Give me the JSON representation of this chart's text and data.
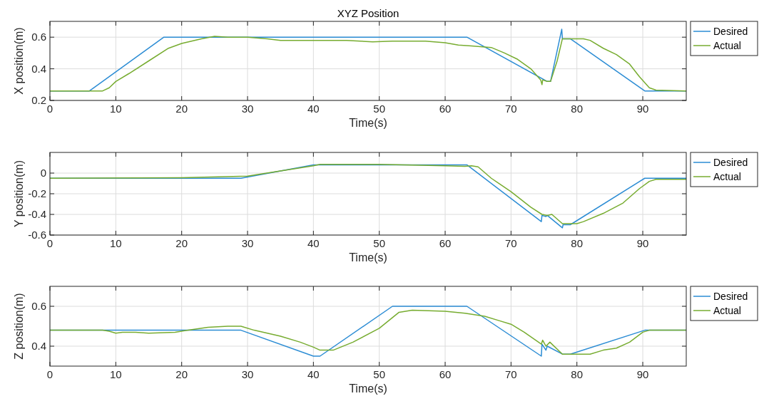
{
  "chart_data": [
    {
      "type": "line",
      "title": "XYZ Position",
      "xlabel": "Time(s)",
      "ylabel": "X position(m)",
      "xlim": [
        0,
        96.6
      ],
      "xticks": [
        0,
        10,
        20,
        30,
        40,
        50,
        60,
        70,
        80,
        90
      ],
      "ylim": [
        0.2,
        0.7
      ],
      "yticks": [
        0.2,
        0.4,
        0.6
      ],
      "grid": true,
      "legend": "right",
      "series": [
        {
          "name": "Desired",
          "color": "#2b8cd4",
          "x": [
            0,
            6,
            17.3,
            63.3,
            75.5,
            76,
            77.7,
            77.8,
            79,
            90.3,
            96.6
          ],
          "values": [
            0.26,
            0.26,
            0.6,
            0.6,
            0.32,
            0.32,
            0.65,
            0.59,
            0.59,
            0.26,
            0.26
          ]
        },
        {
          "name": "Actual",
          "color": "#77ac30",
          "x": [
            0,
            8,
            9,
            10,
            12,
            15,
            18,
            20,
            23,
            25,
            27,
            30,
            33,
            35,
            40,
            45,
            49,
            52,
            57,
            60,
            62,
            64,
            67,
            69,
            71,
            73,
            74.5,
            74.7,
            74.8,
            75.5,
            76,
            77,
            77.8,
            80,
            81,
            82,
            84,
            86,
            88,
            89.5,
            91,
            92,
            96.6
          ],
          "values": [
            0.26,
            0.26,
            0.28,
            0.32,
            0.37,
            0.45,
            0.53,
            0.56,
            0.59,
            0.605,
            0.6,
            0.6,
            0.59,
            0.58,
            0.58,
            0.58,
            0.57,
            0.575,
            0.575,
            0.565,
            0.55,
            0.545,
            0.535,
            0.5,
            0.46,
            0.4,
            0.33,
            0.3,
            0.33,
            0.32,
            0.32,
            0.45,
            0.59,
            0.59,
            0.59,
            0.58,
            0.53,
            0.49,
            0.43,
            0.35,
            0.28,
            0.265,
            0.26
          ]
        }
      ]
    },
    {
      "type": "line",
      "xlabel": "Time(s)",
      "ylabel": "Y position(m)",
      "xlim": [
        0,
        96.6
      ],
      "xticks": [
        0,
        10,
        20,
        30,
        40,
        50,
        60,
        70,
        80,
        90
      ],
      "ylim": [
        -0.6,
        0.2
      ],
      "yticks": [
        -0.6,
        -0.4,
        -0.2,
        0
      ],
      "grid": true,
      "legend": "right",
      "series": [
        {
          "name": "Desired",
          "color": "#2b8cd4",
          "x": [
            0,
            29,
            40,
            63.3,
            74.6,
            74.7,
            75.3,
            75.5,
            77.8,
            77.9,
            79,
            90.3,
            96.6
          ],
          "values": [
            -0.05,
            -0.05,
            0.08,
            0.08,
            -0.47,
            -0.41,
            -0.42,
            -0.41,
            -0.53,
            -0.5,
            -0.5,
            -0.05,
            -0.05
          ]
        },
        {
          "name": "Actual",
          "color": "#77ac30",
          "x": [
            0,
            20,
            30,
            35,
            40,
            41,
            50,
            60,
            63,
            64,
            65,
            67,
            70,
            73,
            74.7,
            75.5,
            76.2,
            77.8,
            79,
            80,
            81,
            84,
            87,
            89.5,
            91,
            92,
            96.6
          ],
          "values": [
            -0.05,
            -0.045,
            -0.03,
            0.02,
            0.07,
            0.085,
            0.085,
            0.07,
            0.065,
            0.07,
            0.06,
            -0.05,
            -0.18,
            -0.33,
            -0.4,
            -0.41,
            -0.4,
            -0.49,
            -0.49,
            -0.49,
            -0.47,
            -0.39,
            -0.29,
            -0.15,
            -0.08,
            -0.06,
            -0.06
          ]
        }
      ]
    },
    {
      "type": "line",
      "xlabel": "Time(s)",
      "ylabel": "Z position(m)",
      "xlim": [
        0,
        96.6
      ],
      "xticks": [
        0,
        10,
        20,
        30,
        40,
        50,
        60,
        70,
        80,
        90
      ],
      "ylim": [
        0.3,
        0.7
      ],
      "yticks": [
        0.4,
        0.6
      ],
      "grid": true,
      "legend": "right",
      "series": [
        {
          "name": "Desired",
          "color": "#2b8cd4",
          "x": [
            0,
            29,
            40,
            41,
            52,
            63.3,
            74.6,
            74.7,
            75.3,
            75.5,
            77.8,
            79,
            90.3,
            96.6
          ],
          "values": [
            0.48,
            0.48,
            0.35,
            0.35,
            0.6,
            0.6,
            0.35,
            0.41,
            0.38,
            0.4,
            0.36,
            0.36,
            0.48,
            0.48
          ]
        },
        {
          "name": "Actual",
          "color": "#77ac30",
          "x": [
            0,
            8,
            9,
            10,
            11,
            13,
            15,
            19,
            21,
            24,
            27,
            29,
            31,
            35,
            38,
            40,
            41,
            43,
            46,
            50,
            53,
            55,
            60,
            63,
            66,
            68,
            70,
            72,
            74.6,
            74.8,
            75.3,
            75.9,
            77.8,
            80,
            82,
            84,
            86,
            88,
            90,
            91,
            96.6
          ],
          "values": [
            0.48,
            0.48,
            0.475,
            0.465,
            0.47,
            0.47,
            0.465,
            0.47,
            0.48,
            0.495,
            0.5,
            0.5,
            0.48,
            0.45,
            0.42,
            0.395,
            0.38,
            0.38,
            0.42,
            0.49,
            0.57,
            0.58,
            0.575,
            0.565,
            0.55,
            0.53,
            0.51,
            0.47,
            0.41,
            0.43,
            0.4,
            0.42,
            0.36,
            0.36,
            0.36,
            0.38,
            0.39,
            0.42,
            0.47,
            0.48,
            0.48
          ]
        }
      ]
    }
  ]
}
